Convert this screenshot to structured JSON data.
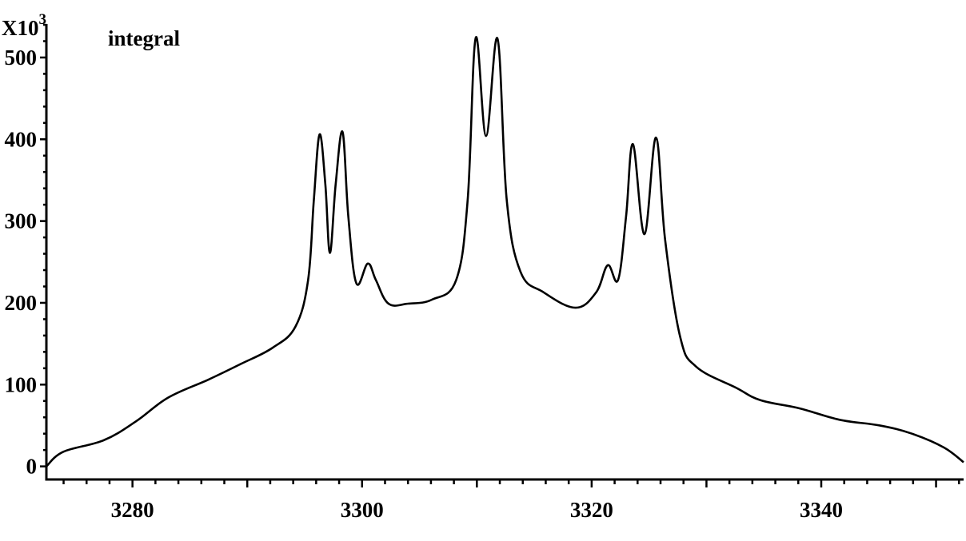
{
  "chart_data": {
    "type": "line",
    "title": "",
    "annotation": "integral",
    "y_multiplier_label": "X10",
    "y_multiplier_exponent": "3",
    "xlabel": "",
    "ylabel": "",
    "xlim": [
      3272.5,
      3352.4
    ],
    "ylim": [
      -16,
      541
    ],
    "x_ticks": [
      3280,
      3300,
      3320,
      3340
    ],
    "x_tick_labels": [
      "3280",
      "3300",
      "3320",
      "3340"
    ],
    "x_minor_step": 2,
    "y_ticks": [
      0,
      100,
      200,
      300,
      400,
      500
    ],
    "y_tick_labels": [
      "0",
      "100",
      "200",
      "300",
      "400",
      "500"
    ],
    "y_minor_step": 20,
    "grid": false,
    "line_color": "#000000",
    "series": [
      {
        "x": [
          3272.5,
          3274.0,
          3277.5,
          3280.3,
          3283.1,
          3286.6,
          3289.4,
          3292.2,
          3294.2,
          3295.3,
          3295.8,
          3296.3,
          3296.8,
          3297.2,
          3297.7,
          3298.3,
          3298.8,
          3299.5,
          3300.5,
          3301.2,
          3302.3,
          3304.0,
          3306.1,
          3308.2,
          3309.2,
          3309.9,
          3310.8,
          3311.8,
          3312.6,
          3313.8,
          3315.8,
          3318.6,
          3320.4,
          3321.4,
          3322.3,
          3323.0,
          3323.6,
          3324.6,
          3325.6,
          3326.4,
          3327.7,
          3329.1,
          3332.6,
          3334.7,
          3338.1,
          3341.6,
          3345.1,
          3347.9,
          3350.7,
          3352.4
        ],
        "y": [
          0,
          18,
          32,
          55,
          84,
          106,
          125,
          145,
          171,
          228,
          326,
          406,
          345,
          261,
          345,
          409,
          306,
          224,
          248,
          228,
          199,
          199,
          204,
          228,
          326,
          524,
          404,
          523,
          326,
          238,
          213,
          194,
          213,
          246,
          228,
          306,
          394,
          284,
          402,
          277,
          159,
          122,
          96,
          81,
          71,
          57,
          50,
          40,
          23,
          5
        ]
      }
    ]
  }
}
